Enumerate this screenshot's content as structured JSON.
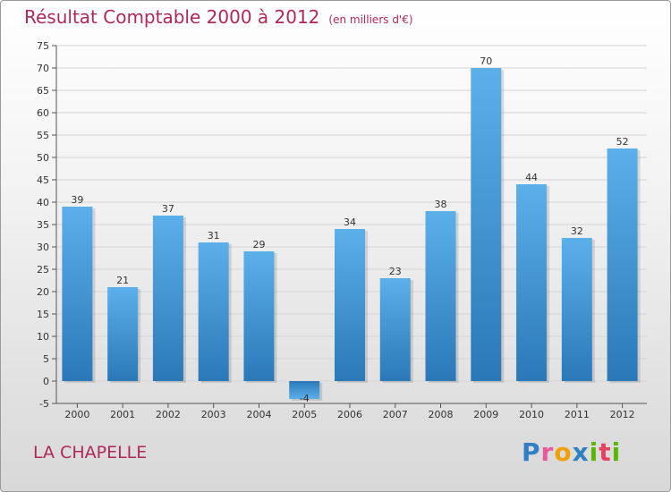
{
  "header": {
    "title": "Résultat Comptable 2000 à 2012",
    "subtitle": "(en milliers d'€)"
  },
  "footer": {
    "place": "LA CHAPELLE",
    "logo_text": "Proxiti"
  },
  "colors": {
    "title": "#b0285a",
    "bar_top": "#5aaee8",
    "bar_bottom": "#2c7cbc",
    "grid": "#d6d6d6"
  },
  "chart_data": {
    "type": "bar",
    "title": "Résultat Comptable 2000 à 2012",
    "subtitle": "(en milliers d'€)",
    "categories": [
      "2000",
      "2001",
      "2002",
      "2003",
      "2004",
      "2005",
      "2006",
      "2007",
      "2008",
      "2009",
      "2010",
      "2011",
      "2012"
    ],
    "values": [
      39,
      21,
      37,
      31,
      29,
      -4,
      34,
      23,
      38,
      70,
      44,
      32,
      52
    ],
    "ylim": [
      -5,
      75
    ],
    "yticks": [
      -5,
      0,
      5,
      10,
      15,
      20,
      25,
      30,
      35,
      40,
      45,
      50,
      55,
      60,
      65,
      70,
      75
    ],
    "xlabel": "",
    "ylabel": "",
    "grid": true,
    "data_labels": true
  }
}
